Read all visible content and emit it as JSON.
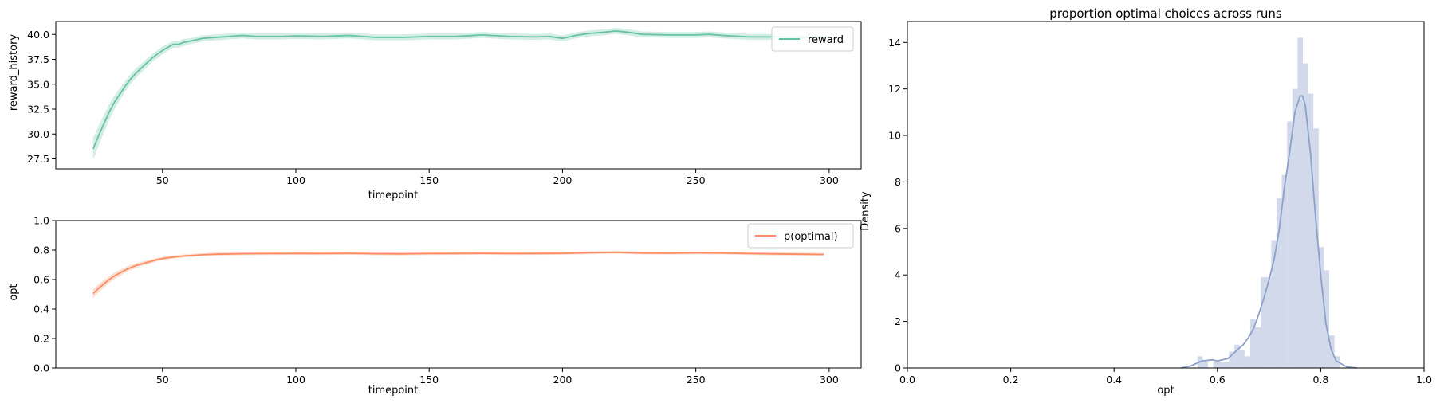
{
  "chart_data": [
    {
      "id": "reward",
      "type": "line",
      "title": "",
      "xlabel": "timepoint",
      "ylabel": "reward_history",
      "xlim": [
        10,
        312
      ],
      "ylim": [
        26.5,
        41.3
      ],
      "xticks": [
        50,
        100,
        150,
        200,
        250,
        300
      ],
      "xtick_labels": [
        "50",
        "100",
        "150",
        "200",
        "250",
        "300"
      ],
      "yticks": [
        27.5,
        30.0,
        32.5,
        35.0,
        37.5,
        40.0
      ],
      "ytick_labels": [
        "27.5",
        "30.0",
        "32.5",
        "35.0",
        "37.5",
        "40.0"
      ],
      "legend_position": "top-right",
      "series": [
        {
          "name": "reward",
          "color": "#66c2a5",
          "band": "confidence interval",
          "x": [
            24,
            26,
            28,
            30,
            32,
            34,
            36,
            38,
            40,
            42,
            44,
            46,
            48,
            50,
            52,
            54,
            56,
            58,
            60,
            65,
            70,
            75,
            80,
            85,
            90,
            95,
            100,
            110,
            120,
            130,
            140,
            150,
            160,
            170,
            180,
            190,
            195,
            200,
            205,
            210,
            215,
            220,
            225,
            230,
            240,
            250,
            255,
            260,
            270,
            280,
            290,
            298
          ],
          "y": [
            28.5,
            29.8,
            31.0,
            32.2,
            33.2,
            34.0,
            34.8,
            35.5,
            36.1,
            36.6,
            37.1,
            37.6,
            38.0,
            38.4,
            38.7,
            39.0,
            39.0,
            39.2,
            39.3,
            39.6,
            39.7,
            39.8,
            39.9,
            39.8,
            39.8,
            39.8,
            39.85,
            39.8,
            39.9,
            39.7,
            39.7,
            39.8,
            39.8,
            39.95,
            39.8,
            39.75,
            39.8,
            39.6,
            39.9,
            40.1,
            40.2,
            40.35,
            40.2,
            40.0,
            39.95,
            39.95,
            40.0,
            39.9,
            39.75,
            39.75,
            39.7,
            39.7
          ],
          "ci": [
            1.1,
            1.0,
            0.9,
            0.8,
            0.7,
            0.6,
            0.55,
            0.5,
            0.5,
            0.45,
            0.45,
            0.4,
            0.4,
            0.4,
            0.35,
            0.35,
            0.35,
            0.35,
            0.3,
            0.3,
            0.3,
            0.3,
            0.3,
            0.3,
            0.3,
            0.3,
            0.3,
            0.3,
            0.3,
            0.3,
            0.3,
            0.3,
            0.3,
            0.3,
            0.3,
            0.3,
            0.3,
            0.3,
            0.3,
            0.3,
            0.3,
            0.3,
            0.3,
            0.3,
            0.3,
            0.3,
            0.3,
            0.3,
            0.3,
            0.3,
            0.3,
            0.3
          ]
        }
      ]
    },
    {
      "id": "opt",
      "type": "line",
      "title": "",
      "xlabel": "timepoint",
      "ylabel": "opt",
      "xlim": [
        10,
        312
      ],
      "ylim": [
        0.0,
        1.0
      ],
      "xticks": [
        50,
        100,
        150,
        200,
        250,
        300
      ],
      "xtick_labels": [
        "50",
        "100",
        "150",
        "200",
        "250",
        "300"
      ],
      "yticks": [
        0.0,
        0.2,
        0.4,
        0.6,
        0.8,
        1.0
      ],
      "ytick_labels": [
        "0.0",
        "0.2",
        "0.4",
        "0.6",
        "0.8",
        "1.0"
      ],
      "legend_position": "top-right",
      "series": [
        {
          "name": "p(optimal)",
          "color": "#fc8d62",
          "band": "confidence interval",
          "x": [
            24,
            26,
            28,
            30,
            32,
            34,
            36,
            38,
            40,
            42,
            44,
            46,
            48,
            50,
            52,
            54,
            56,
            58,
            60,
            65,
            70,
            80,
            90,
            100,
            110,
            120,
            130,
            140,
            150,
            160,
            170,
            180,
            190,
            200,
            210,
            220,
            230,
            240,
            250,
            260,
            270,
            280,
            290,
            298
          ],
          "y": [
            0.505,
            0.54,
            0.57,
            0.6,
            0.625,
            0.645,
            0.665,
            0.68,
            0.695,
            0.705,
            0.715,
            0.725,
            0.735,
            0.742,
            0.748,
            0.752,
            0.756,
            0.76,
            0.762,
            0.768,
            0.772,
            0.775,
            0.776,
            0.777,
            0.776,
            0.778,
            0.775,
            0.774,
            0.776,
            0.777,
            0.778,
            0.776,
            0.777,
            0.778,
            0.782,
            0.785,
            0.78,
            0.779,
            0.781,
            0.78,
            0.776,
            0.774,
            0.772,
            0.77
          ],
          "ci": [
            0.03,
            0.028,
            0.026,
            0.024,
            0.022,
            0.02,
            0.018,
            0.017,
            0.016,
            0.015,
            0.014,
            0.013,
            0.012,
            0.012,
            0.011,
            0.011,
            0.01,
            0.01,
            0.01,
            0.01,
            0.01,
            0.01,
            0.01,
            0.01,
            0.01,
            0.01,
            0.01,
            0.01,
            0.01,
            0.01,
            0.01,
            0.01,
            0.01,
            0.01,
            0.01,
            0.01,
            0.01,
            0.01,
            0.01,
            0.01,
            0.01,
            0.01,
            0.01,
            0.01
          ]
        }
      ]
    },
    {
      "id": "hist",
      "type": "bar",
      "title": "proportion optimal choices across runs",
      "xlabel": "opt",
      "ylabel": "Density",
      "xlim": [
        0.0,
        1.0
      ],
      "ylim": [
        0,
        14.9
      ],
      "xticks": [
        0.0,
        0.2,
        0.4,
        0.6,
        0.8,
        1.0
      ],
      "xtick_labels": [
        "0.0",
        "0.2",
        "0.4",
        "0.6",
        "0.8",
        "1.0"
      ],
      "yticks": [
        0,
        2,
        4,
        6,
        8,
        10,
        12,
        14
      ],
      "ytick_labels": [
        "0",
        "2",
        "4",
        "6",
        "8",
        "10",
        "12",
        "14"
      ],
      "hist_color": "#8da0cb",
      "kde_color": "#8da0cb",
      "bin_edges": [
        0.5614,
        0.5716,
        0.5818,
        0.592,
        0.6022,
        0.6124,
        0.6226,
        0.6328,
        0.643,
        0.6532,
        0.6634,
        0.6736,
        0.6838,
        0.694,
        0.7042,
        0.7144,
        0.7246,
        0.7348,
        0.745,
        0.7552,
        0.7654,
        0.7756,
        0.7858,
        0.796,
        0.8062,
        0.8164,
        0.8266,
        0.8368
      ],
      "values": [
        0.5,
        0.25,
        0,
        0.25,
        0.25,
        0.25,
        0.7,
        1.0,
        0.75,
        0.5,
        2.1,
        1.75,
        3.9,
        3.9,
        5.5,
        7.3,
        8.3,
        10.6,
        12.0,
        14.2,
        13.1,
        11.8,
        10.3,
        5.2,
        4.2,
        1.4,
        0.5
      ],
      "kde_x": [
        0.53,
        0.55,
        0.57,
        0.59,
        0.6,
        0.62,
        0.63,
        0.64,
        0.65,
        0.66,
        0.67,
        0.68,
        0.69,
        0.7,
        0.71,
        0.72,
        0.73,
        0.74,
        0.75,
        0.76,
        0.765,
        0.77,
        0.78,
        0.79,
        0.8,
        0.81,
        0.82,
        0.83,
        0.85,
        0.87
      ],
      "kde_y": [
        0.0,
        0.1,
        0.3,
        0.35,
        0.3,
        0.4,
        0.6,
        0.8,
        1.0,
        1.3,
        1.7,
        2.3,
        3.0,
        3.8,
        4.7,
        6.0,
        7.8,
        9.3,
        11.0,
        11.7,
        11.7,
        11.3,
        9.3,
        6.5,
        4.0,
        1.9,
        0.8,
        0.3,
        0.05,
        0.0
      ]
    }
  ]
}
